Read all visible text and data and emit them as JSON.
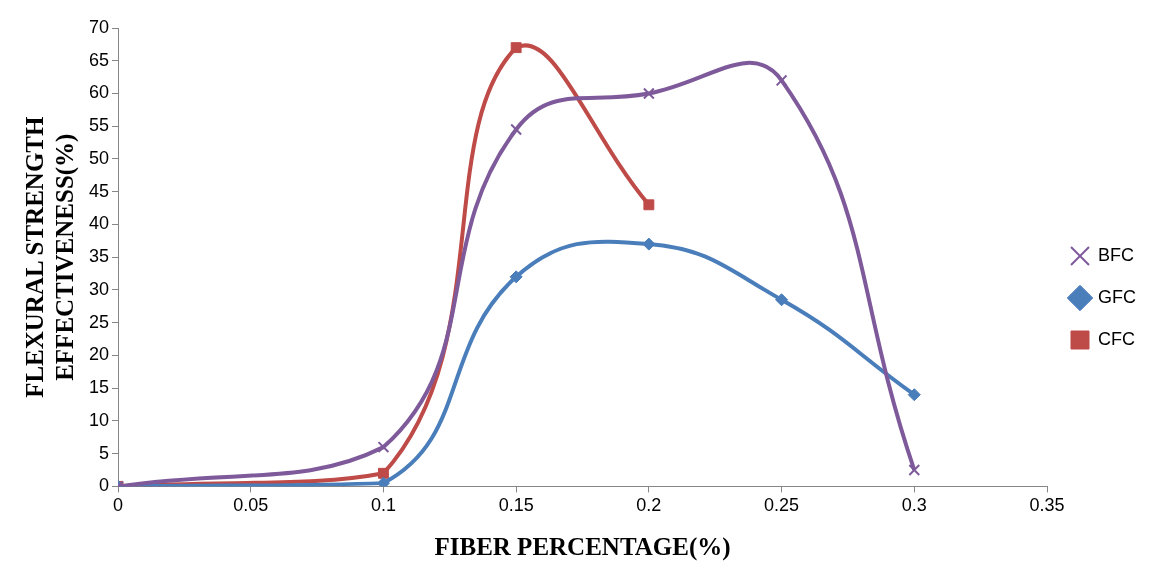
{
  "chart_data": {
    "type": "line",
    "xlabel": "FIBER PERCENTAGE(%)",
    "ylabel": "FLEXURAL STRENGTH\nEFFECTIVENESS(%)",
    "xlim": [
      0,
      0.35
    ],
    "xticks": [
      0,
      0.05,
      0.1,
      0.15,
      0.2,
      0.25,
      0.3,
      0.35
    ],
    "ylim": [
      0,
      70
    ],
    "yticks": [
      0,
      5,
      10,
      15,
      20,
      25,
      30,
      35,
      40,
      45,
      50,
      55,
      60,
      65,
      70
    ],
    "grid": false,
    "legend": "right",
    "series": [
      {
        "name": "BFC",
        "color": "#7e5a9b",
        "marker": "cross",
        "x": [
          0,
          0.1,
          0.15,
          0.2,
          0.25,
          0.3
        ],
        "values": [
          0,
          6,
          54.5,
          60,
          62,
          2.5
        ]
      },
      {
        "name": "GFC",
        "color": "#4a7ebb",
        "marker": "diamond",
        "x": [
          0,
          0.1,
          0.15,
          0.2,
          0.25,
          0.3
        ],
        "values": [
          0,
          0.5,
          32,
          37,
          28.5,
          14
        ]
      },
      {
        "name": "CFC",
        "color": "#be4b48",
        "marker": "square",
        "x": [
          0,
          0.1,
          0.15,
          0.2
        ],
        "values": [
          0,
          2,
          67,
          43
        ]
      }
    ]
  }
}
